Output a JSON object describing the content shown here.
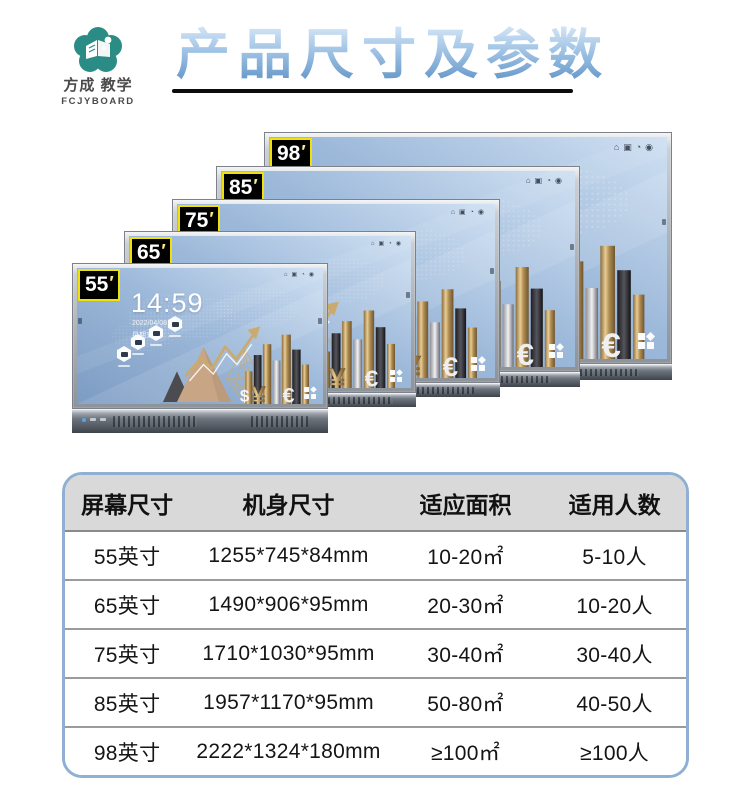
{
  "logo": {
    "name_cn": "方成 教学",
    "name_en": "FCJYBOARD"
  },
  "header": {
    "title": "产品尺寸及参数"
  },
  "displays": [
    {
      "size": "98",
      "unit": "′"
    },
    {
      "size": "85",
      "unit": "′"
    },
    {
      "size": "75",
      "unit": "′"
    },
    {
      "size": "65",
      "unit": "′"
    },
    {
      "size": "55",
      "unit": "′"
    }
  ],
  "screen_home": {
    "time": "14:59",
    "date": "2022/04/08",
    "weekday": "星期五"
  },
  "table": {
    "columns": [
      "屏幕尺寸",
      "机身尺寸",
      "适应面积",
      "适用人数"
    ],
    "rows": [
      [
        "55英寸",
        "1255*745*84mm",
        "10-20㎡",
        "5-10人"
      ],
      [
        "65英寸",
        "1490*906*95mm",
        "20-30㎡",
        "10-20人"
      ],
      [
        "75英寸",
        "1710*1030*95mm",
        "30-40㎡",
        "30-40人"
      ],
      [
        "85英寸",
        "1957*1170*95mm",
        "50-80㎡",
        "40-50人"
      ],
      [
        "98英寸",
        "2222*1324*180mm",
        "≥100㎡",
        "≥100人"
      ]
    ]
  },
  "colors": {
    "title_blue": "#5d92c5",
    "chip_border_yellow": "#f0e10a",
    "table_border_blue": "#8fafd3",
    "table_header_gray": "#d9d9d9",
    "screen_blue": "#9db9da",
    "gold": "#c9a96a",
    "logo_teal": "#2b8c85"
  }
}
